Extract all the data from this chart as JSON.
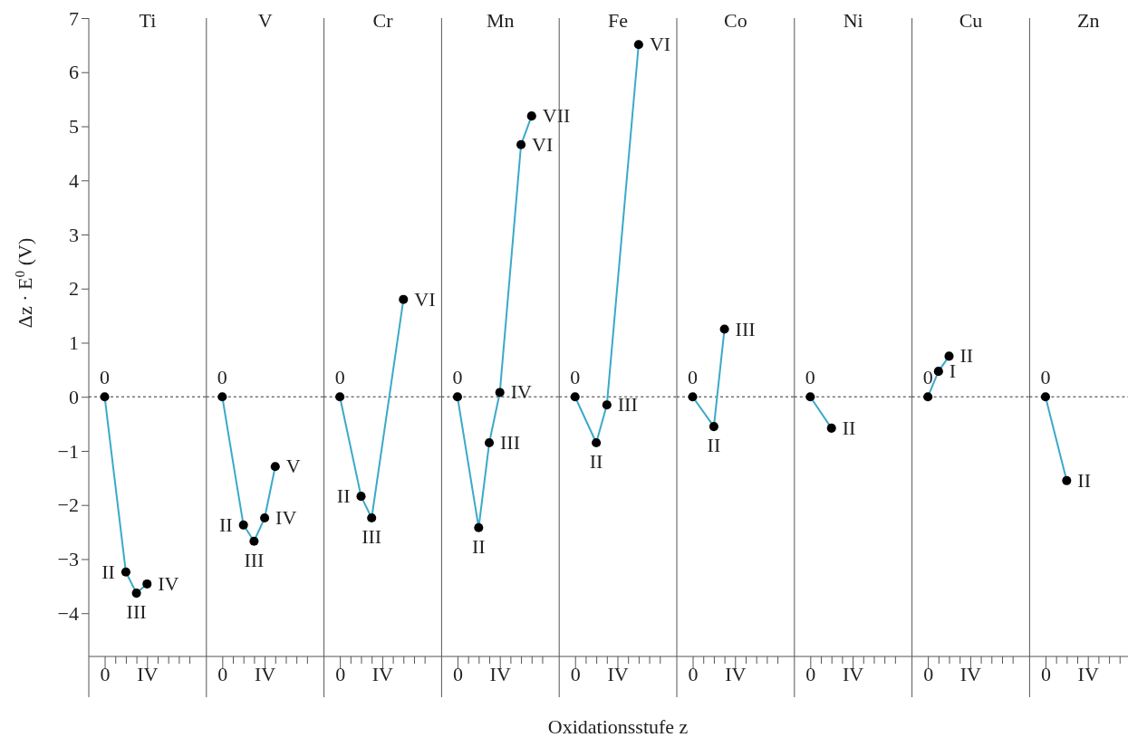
{
  "chart_data": [
    {
      "type": "line",
      "title": "Ti",
      "ylabel": "Δz · E$^{0}$ (V)",
      "categories": [
        "0",
        null,
        null,
        null,
        "IV",
        null,
        null,
        null,
        null
      ],
      "ylim": [
        -4.8,
        7
      ],
      "yticks": [
        -4,
        -3,
        -2,
        -1,
        0,
        1,
        2,
        3,
        4,
        5,
        6,
        7
      ],
      "marker": "circle",
      "ref_lines": [
        {
          "axis": "y",
          "value": 0,
          "line_style": "dashed"
        }
      ],
      "series": [
        {
          "color": "#3ba9c9",
          "values": [
            0,
            null,
            -3.24,
            -3.63,
            -3.46,
            null,
            null,
            null,
            null
          ],
          "value_labels": [
            "0",
            null,
            "II",
            "III",
            "IV",
            null,
            null,
            null,
            null
          ]
        }
      ]
    },
    {
      "type": "line",
      "title": "V",
      "tick_labels": "x",
      "categories": [
        "0",
        null,
        null,
        null,
        "IV",
        null,
        null,
        null,
        null
      ],
      "ylim": [
        -4.8,
        7
      ],
      "marker": "circle",
      "ref_lines": [
        {
          "axis": "y",
          "value": 0,
          "line_style": "dashed"
        }
      ],
      "series": [
        {
          "color": "#3ba9c9",
          "values": [
            0,
            null,
            -2.37,
            -2.67,
            -2.24,
            -1.29,
            null,
            null,
            null
          ],
          "value_labels": [
            "0",
            null,
            "II",
            "III",
            "IV",
            "V",
            null,
            null,
            null
          ]
        }
      ]
    },
    {
      "type": "line",
      "title": "Cr",
      "tick_labels": "x",
      "categories": [
        "0",
        null,
        null,
        null,
        "IV",
        null,
        null,
        null,
        null
      ],
      "ylim": [
        -4.8,
        7
      ],
      "marker": "circle",
      "ref_lines": [
        {
          "axis": "y",
          "value": 0,
          "line_style": "dashed"
        }
      ],
      "series": [
        {
          "color": "#3ba9c9",
          "values": [
            0,
            null,
            -1.84,
            -2.24,
            null,
            null,
            1.8,
            null,
            null
          ],
          "value_labels": [
            "0",
            null,
            "II",
            "III",
            null,
            null,
            "VI",
            null,
            null
          ]
        }
      ]
    },
    {
      "type": "line",
      "title": "Mn",
      "tick_labels": "x",
      "categories": [
        "0",
        null,
        null,
        null,
        "IV",
        null,
        null,
        null,
        null
      ],
      "ylim": [
        -4.8,
        7
      ],
      "marker": "circle",
      "ref_lines": [
        {
          "axis": "y",
          "value": 0,
          "line_style": "dashed"
        }
      ],
      "series": [
        {
          "color": "#3ba9c9",
          "values": [
            0,
            null,
            -2.42,
            -0.85,
            0.08,
            null,
            4.66,
            5.19,
            null
          ],
          "value_labels": [
            "0",
            null,
            "II",
            "III",
            "IV",
            null,
            "VI",
            "VII",
            null
          ]
        }
      ]
    },
    {
      "type": "line",
      "title": "Fe",
      "xlabel": "Oxidationsstufe z",
      "tick_labels": "x",
      "categories": [
        "0",
        null,
        null,
        null,
        "IV",
        null,
        null,
        null,
        null
      ],
      "ylim": [
        -4.8,
        7
      ],
      "marker": "circle",
      "ref_lines": [
        {
          "axis": "y",
          "value": 0,
          "line_style": "dashed"
        }
      ],
      "series": [
        {
          "color": "#3ba9c9",
          "values": [
            0,
            null,
            -0.85,
            -0.15,
            null,
            null,
            6.51,
            null,
            null
          ],
          "value_labels": [
            "0",
            null,
            "II",
            "III",
            null,
            null,
            "VI",
            null,
            null
          ]
        }
      ]
    },
    {
      "type": "line",
      "title": "Co",
      "tick_labels": "x",
      "categories": [
        "0",
        null,
        null,
        null,
        "IV",
        null,
        null,
        null,
        null
      ],
      "ylim": [
        -4.8,
        7
      ],
      "marker": "circle",
      "ref_lines": [
        {
          "axis": "y",
          "value": 0,
          "line_style": "dashed"
        }
      ],
      "series": [
        {
          "color": "#3ba9c9",
          "values": [
            0,
            null,
            -0.55,
            1.25,
            null,
            null,
            null,
            null,
            null
          ],
          "value_labels": [
            "0",
            null,
            "II",
            "III",
            null,
            null,
            null,
            null,
            null
          ]
        }
      ]
    },
    {
      "type": "line",
      "title": "Ni",
      "tick_labels": "x",
      "categories": [
        "0",
        null,
        null,
        null,
        "IV",
        null,
        null,
        null,
        null
      ],
      "ylim": [
        -4.8,
        7
      ],
      "marker": "circle",
      "ref_lines": [
        {
          "axis": "y",
          "value": 0,
          "line_style": "dashed"
        }
      ],
      "series": [
        {
          "color": "#3ba9c9",
          "values": [
            0,
            null,
            -0.58,
            null,
            null,
            null,
            null,
            null,
            null
          ],
          "value_labels": [
            "0",
            null,
            "II",
            null,
            null,
            null,
            null,
            null,
            null
          ]
        }
      ]
    },
    {
      "type": "line",
      "title": "Cu",
      "tick_labels": "x",
      "categories": [
        "0",
        null,
        null,
        null,
        "IV",
        null,
        null,
        null,
        null
      ],
      "ylim": [
        -4.8,
        7
      ],
      "marker": "circle",
      "ref_lines": [
        {
          "axis": "y",
          "value": 0,
          "line_style": "dashed"
        }
      ],
      "series": [
        {
          "color": "#3ba9c9",
          "values": [
            0,
            0.47,
            0.75,
            null,
            null,
            null,
            null,
            null,
            null
          ],
          "value_labels": [
            "0",
            "I",
            "II",
            null,
            null,
            null,
            null,
            null,
            null
          ]
        }
      ]
    },
    {
      "type": "line",
      "title": "Zn",
      "tick_labels": "x",
      "categories": [
        "0",
        null,
        null,
        null,
        "IV",
        null,
        null,
        null
      ],
      "ylim": [
        -4.8,
        7
      ],
      "marker": "circle",
      "ref_lines": [
        {
          "axis": "y",
          "value": 0,
          "line_style": "dashed"
        }
      ],
      "series": [
        {
          "color": "#3ba9c9",
          "values": [
            0,
            null,
            -1.55,
            null,
            null,
            null,
            null,
            null
          ],
          "value_labels": [
            "0",
            null,
            "II",
            null,
            null,
            null,
            null,
            null
          ]
        }
      ]
    }
  ]
}
